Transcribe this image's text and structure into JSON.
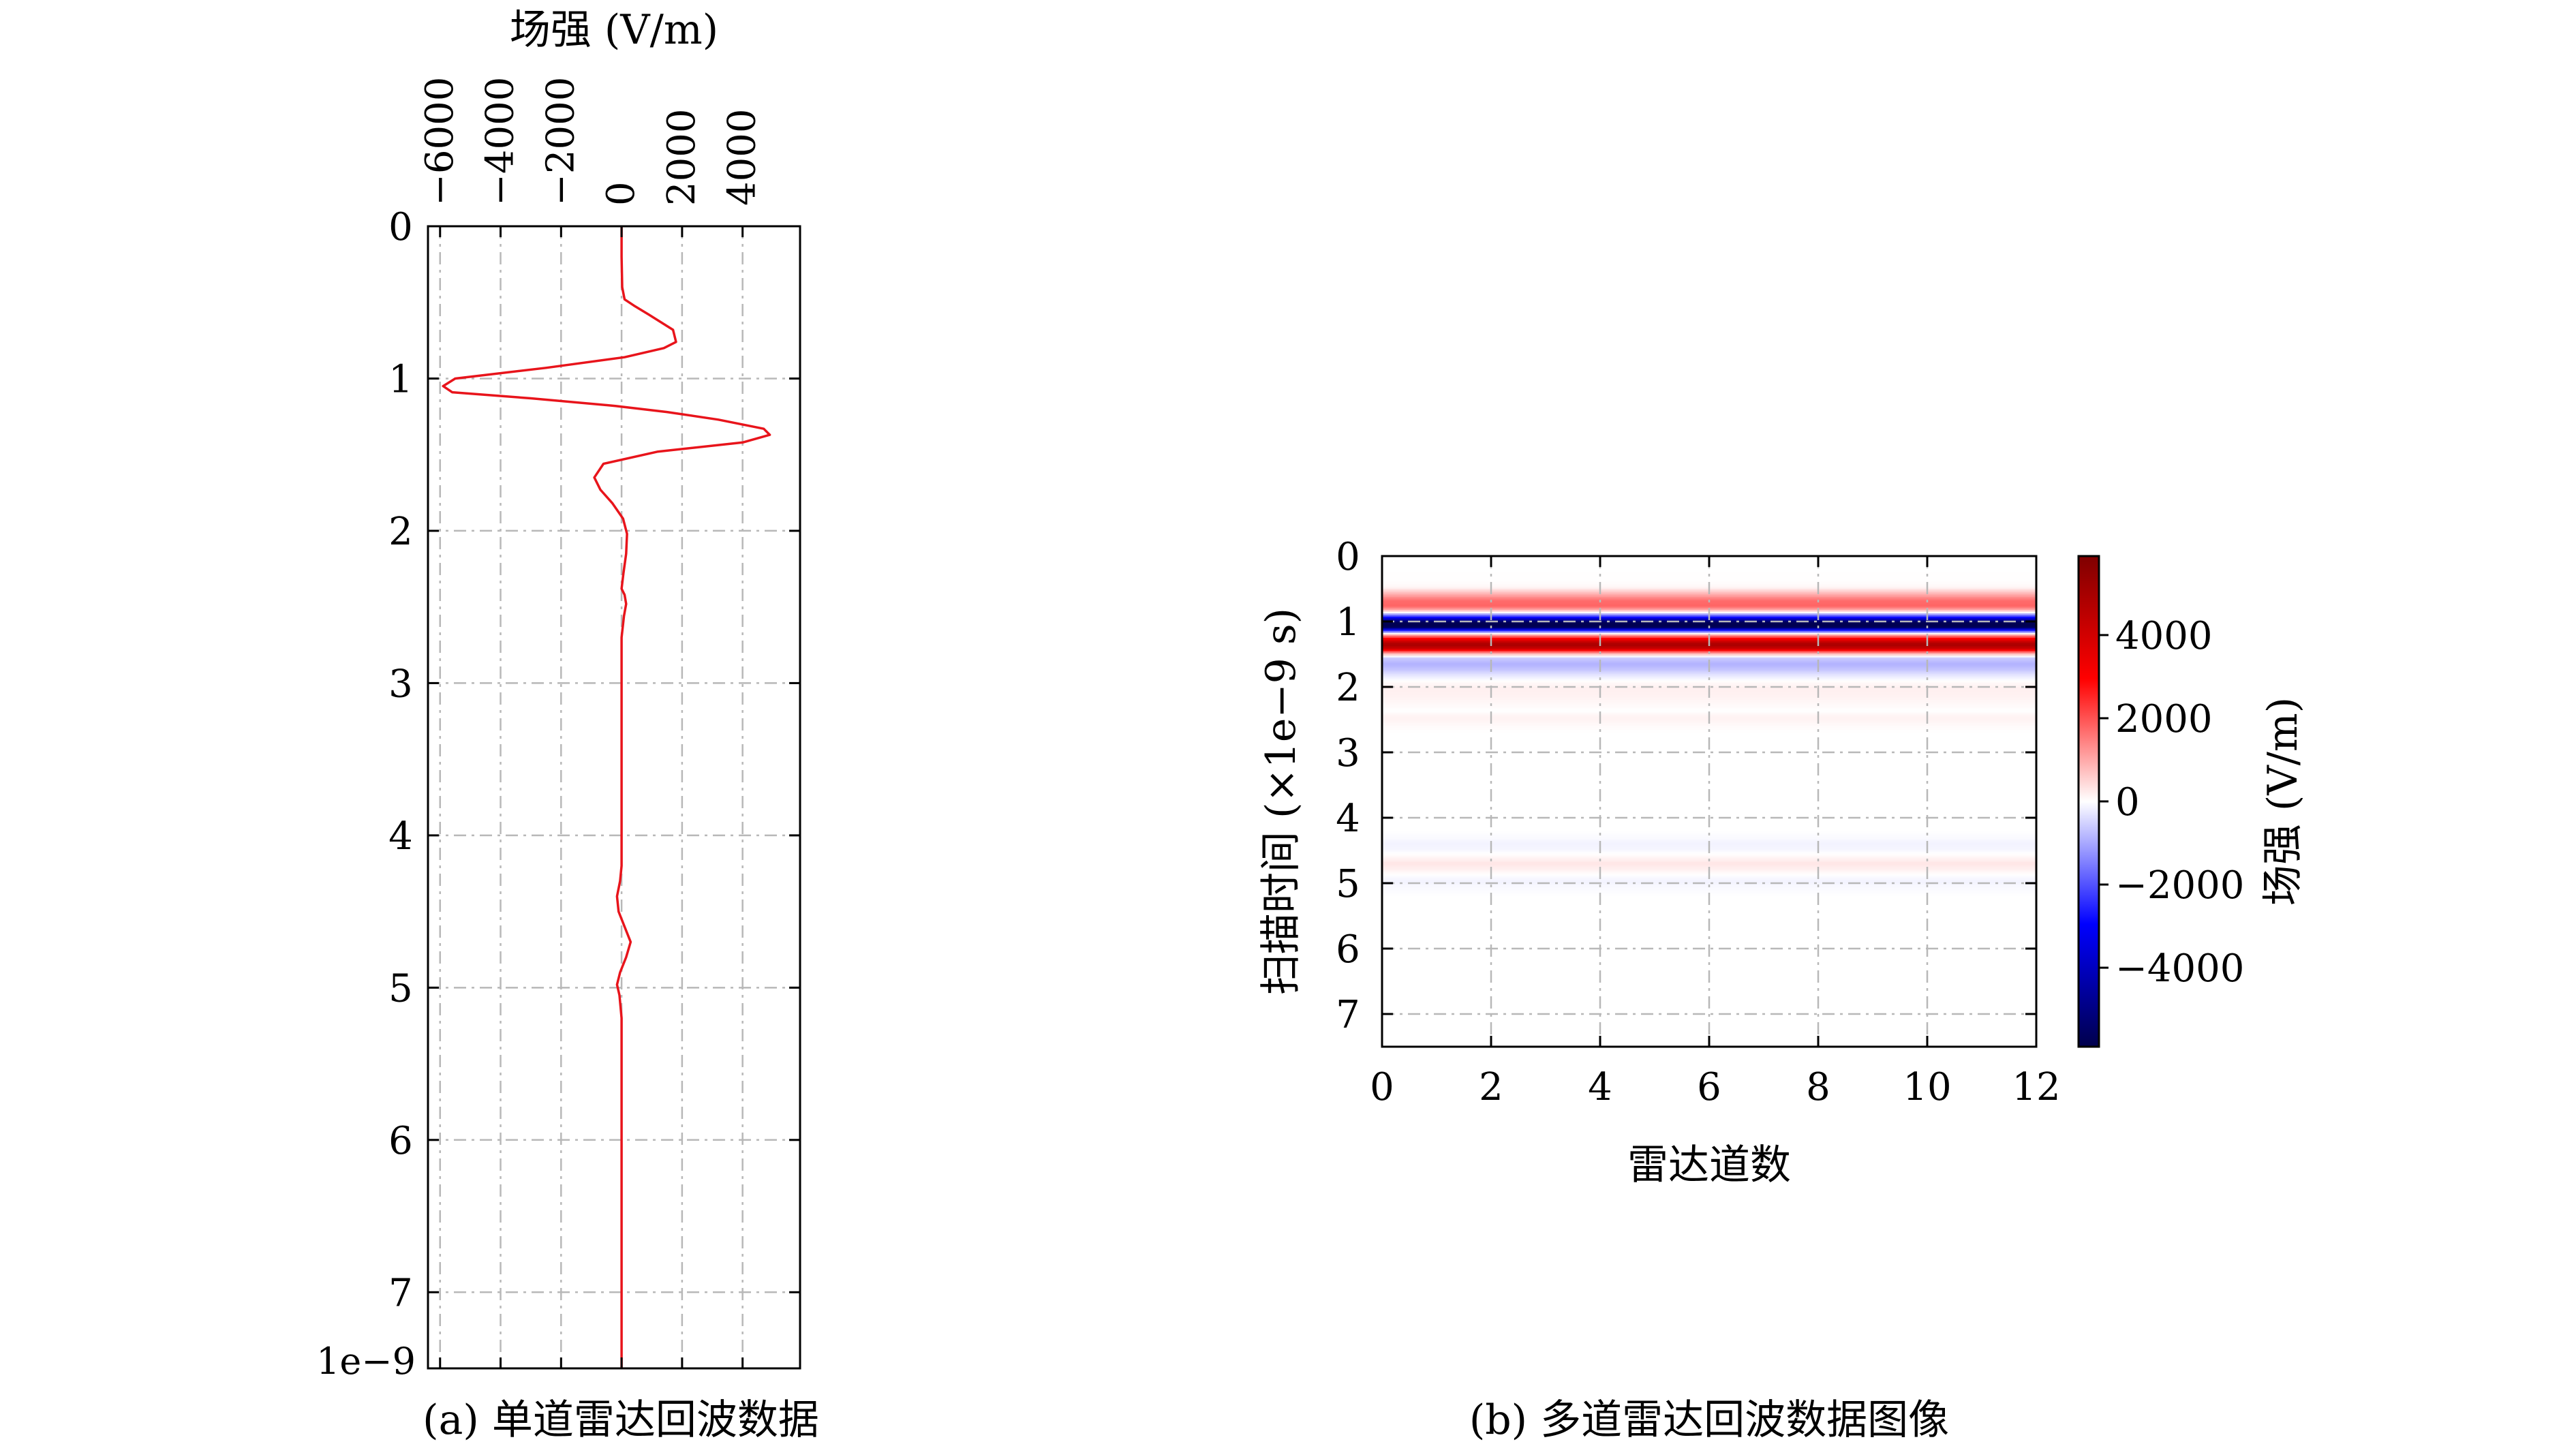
{
  "chart_data": [
    {
      "panel_id": "a",
      "type": "line",
      "caption": "(a) 单道雷达回波数据",
      "xlabel": "场强 (V/m)",
      "xaxis_position": "top",
      "xticks": [
        -6000,
        -4000,
        -2000,
        0,
        2000,
        4000
      ],
      "xtick_labels": [
        "−6000",
        "−4000",
        "−2000",
        "0",
        "2000",
        "4000"
      ],
      "xlim": [
        -6400,
        5900
      ],
      "ylabel": "",
      "yticks": [
        0,
        1,
        2,
        3,
        4,
        5,
        6,
        7
      ],
      "ytick_labels": [
        "0",
        "1",
        "2",
        "3",
        "4",
        "5",
        "6",
        "7"
      ],
      "ylim": [
        7.5,
        0
      ],
      "y_offset_text": "1e−9",
      "grid": true,
      "line_color": "#e8141b",
      "series": [
        {
          "x": [
            0,
            0,
            20,
            100,
            400,
            900,
            1700,
            1800,
            1400,
            100,
            -2500,
            -5500,
            -5900,
            -5600,
            -3000,
            -200,
            1500,
            3200,
            4700,
            4900,
            4000,
            1200,
            -600,
            -900,
            -700,
            -300,
            50,
            180,
            150,
            60,
            0,
            100,
            150,
            80,
            0,
            0,
            0,
            0,
            0,
            -50,
            -150,
            -100,
            100,
            300,
            150,
            -50,
            -150,
            -70,
            0,
            0,
            0,
            0,
            0,
            0
          ],
          "y": [
            0,
            0.2,
            0.4,
            0.48,
            0.52,
            0.58,
            0.68,
            0.76,
            0.8,
            0.86,
            0.93,
            1.0,
            1.05,
            1.09,
            1.13,
            1.18,
            1.22,
            1.27,
            1.33,
            1.37,
            1.42,
            1.48,
            1.56,
            1.65,
            1.73,
            1.82,
            1.92,
            2.02,
            2.15,
            2.28,
            2.38,
            2.42,
            2.48,
            2.56,
            2.7,
            2.9,
            3.3,
            3.8,
            4.2,
            4.3,
            4.4,
            4.5,
            4.6,
            4.7,
            4.8,
            4.9,
            4.98,
            5.05,
            5.2,
            5.6,
            6.0,
            6.5,
            7.0,
            7.5
          ]
        }
      ]
    },
    {
      "panel_id": "b",
      "type": "heatmap",
      "caption": "(b) 多道雷达回波数据图像",
      "xlabel": "雷达道数",
      "ylabel": "扫描时间 (×1e−9 s)",
      "xticks": [
        0,
        2,
        4,
        6,
        8,
        10,
        12
      ],
      "xtick_labels": [
        "0",
        "2",
        "4",
        "6",
        "8",
        "10",
        "12"
      ],
      "xlim": [
        0,
        12
      ],
      "yticks": [
        0,
        1,
        2,
        3,
        4,
        5,
        6,
        7
      ],
      "ytick_labels": [
        "0",
        "1",
        "2",
        "3",
        "4",
        "5",
        "6",
        "7"
      ],
      "ylim": [
        7.5,
        0
      ],
      "grid": true,
      "note": "identical trace repeated across all traces; field strength varies with time only",
      "colorbar": {
        "label": "场强 (V/m)",
        "vmin": -5900,
        "vmax": 5900,
        "ticks": [
          4000,
          2000,
          0,
          -2000,
          -4000
        ],
        "tick_labels": [
          "4000",
          "2000",
          "0",
          "−2000",
          "−4000"
        ],
        "colormap": "seismic",
        "colors": [
          "#00004c",
          "#0000ff",
          "#ffffff",
          "#ff0000",
          "#7f0000"
        ]
      }
    }
  ]
}
